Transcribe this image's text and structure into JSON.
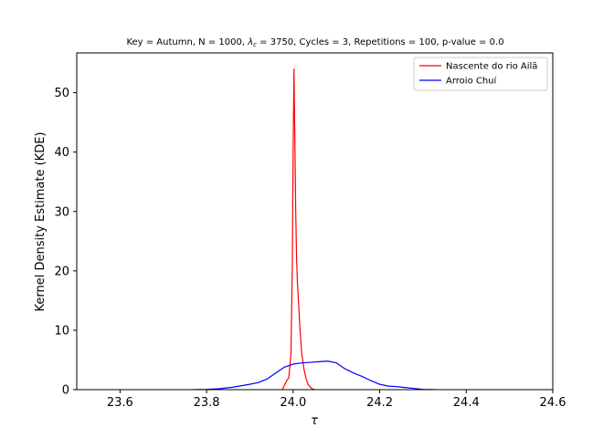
{
  "chart_data": {
    "type": "line",
    "title": "Key = Autumn, N = 1000, λ_c = 3750, Cycles = 3, Repetitions = 100, p-value = 0.0",
    "title_parts": {
      "prefix": "Key = Autumn, N = 1000, ",
      "lambda_symbol": "λ",
      "lambda_sub": "c",
      "suffix": " = 3750, Cycles = 3, Repetitions = 100, p-value = 0.0"
    },
    "xlabel": "τ",
    "ylabel": "Kernel Density Estimate (KDE)",
    "xlim": [
      23.5,
      24.6
    ],
    "ylim": [
      0,
      56.7
    ],
    "xticks": [
      {
        "value": 23.6,
        "label": "23.6"
      },
      {
        "value": 23.8,
        "label": "23.8"
      },
      {
        "value": 24.0,
        "label": "24.0"
      },
      {
        "value": 24.2,
        "label": "24.2"
      },
      {
        "value": 24.4,
        "label": "24.4"
      },
      {
        "value": 24.6,
        "label": "24.6"
      }
    ],
    "yticks": [
      {
        "value": 0,
        "label": "0"
      },
      {
        "value": 10,
        "label": "10"
      },
      {
        "value": 20,
        "label": "20"
      },
      {
        "value": 30,
        "label": "30"
      },
      {
        "value": 40,
        "label": "40"
      },
      {
        "value": 50,
        "label": "50"
      }
    ],
    "grid": false,
    "legend_position": "top-right",
    "series": [
      {
        "name": "Nascente do rio Ailã",
        "color": "#ff0000",
        "x": [
          23.975,
          23.985,
          23.99,
          23.995,
          23.998,
          24.0,
          24.002,
          24.004,
          24.006,
          24.008,
          24.01,
          24.013,
          24.016,
          24.02,
          24.025,
          24.03,
          24.035,
          24.04,
          24.045,
          24.05
        ],
        "y": [
          0,
          1.5,
          2.0,
          6,
          20,
          40,
          54,
          42,
          30,
          22,
          18,
          14,
          10,
          6,
          3.5,
          1.8,
          0.8,
          0.4,
          0.1,
          0
        ]
      },
      {
        "name": "Arroio Chuí",
        "color": "#0000ff",
        "x": [
          23.77,
          23.8,
          23.83,
          23.86,
          23.88,
          23.9,
          23.92,
          23.94,
          23.96,
          23.98,
          24.0,
          24.02,
          24.04,
          24.06,
          24.08,
          24.1,
          24.12,
          24.14,
          24.16,
          24.18,
          24.2,
          24.22,
          24.24,
          24.26,
          24.28,
          24.3,
          24.33
        ],
        "y": [
          0,
          0.05,
          0.15,
          0.4,
          0.65,
          0.9,
          1.2,
          1.8,
          2.8,
          3.8,
          4.3,
          4.5,
          4.6,
          4.7,
          4.8,
          4.5,
          3.5,
          2.8,
          2.2,
          1.5,
          0.9,
          0.6,
          0.5,
          0.35,
          0.2,
          0.05,
          0
        ]
      }
    ]
  }
}
